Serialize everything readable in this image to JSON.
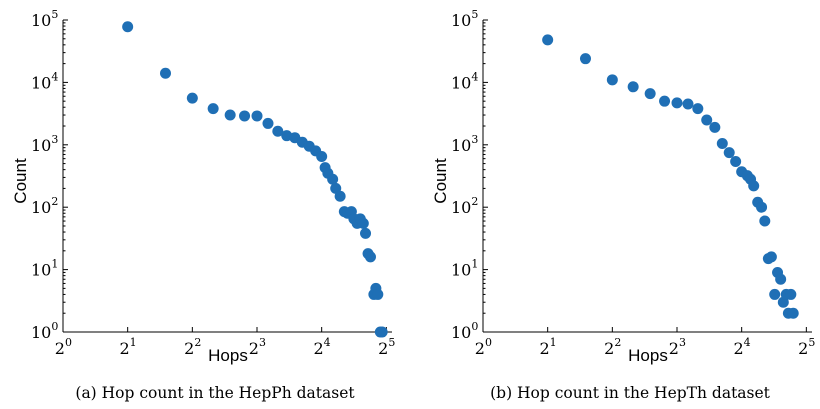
{
  "chart_data": [
    {
      "type": "scatter",
      "title": "",
      "xlabel": "Hops",
      "ylabel": "Count",
      "caption": "(a) Hop count in the HepPh dataset",
      "x_scale": "log2",
      "y_scale": "log10",
      "xlim": [
        1,
        34
      ],
      "ylim": [
        1,
        100000
      ],
      "x_ticks": [
        {
          "base": "2",
          "exp": "0"
        },
        {
          "base": "2",
          "exp": "1"
        },
        {
          "base": "2",
          "exp": "2"
        },
        {
          "base": "2",
          "exp": "3"
        },
        {
          "base": "2",
          "exp": "4"
        },
        {
          "base": "2",
          "exp": "5"
        }
      ],
      "y_ticks": [
        {
          "base": "10",
          "exp": "0"
        },
        {
          "base": "10",
          "exp": "1"
        },
        {
          "base": "10",
          "exp": "2"
        },
        {
          "base": "10",
          "exp": "3"
        },
        {
          "base": "10",
          "exp": "4"
        },
        {
          "base": "10",
          "exp": "5"
        }
      ],
      "marker_color": "#1f6fb5",
      "x": [
        2,
        3,
        4,
        5,
        6,
        7,
        8,
        9,
        10,
        11,
        12,
        13,
        14,
        15,
        16,
        16.6,
        17.1,
        18,
        18.6,
        19.5,
        20.4,
        21.1,
        22,
        22.6,
        23.4,
        24.2,
        25,
        25.6,
        26.3,
        27,
        28,
        28.6,
        29.2,
        30,
        30.6
      ],
      "y": [
        78000,
        14000,
        5600,
        3800,
        3000,
        2900,
        2900,
        2200,
        1650,
        1400,
        1300,
        1100,
        950,
        800,
        650,
        430,
        350,
        280,
        200,
        150,
        85,
        80,
        85,
        65,
        55,
        65,
        55,
        38,
        18,
        16,
        4,
        5,
        4,
        1,
        1
      ]
    },
    {
      "type": "scatter",
      "title": "",
      "xlabel": "Hops",
      "ylabel": "Count",
      "caption": "(b) Hop count in the HepTh dataset",
      "x_scale": "log2",
      "y_scale": "log10",
      "xlim": [
        1,
        34
      ],
      "ylim": [
        1,
        100000
      ],
      "x_ticks": [
        {
          "base": "2",
          "exp": "0"
        },
        {
          "base": "2",
          "exp": "1"
        },
        {
          "base": "2",
          "exp": "2"
        },
        {
          "base": "2",
          "exp": "3"
        },
        {
          "base": "2",
          "exp": "4"
        },
        {
          "base": "2",
          "exp": "5"
        }
      ],
      "y_ticks": [
        {
          "base": "10",
          "exp": "0"
        },
        {
          "base": "10",
          "exp": "1"
        },
        {
          "base": "10",
          "exp": "2"
        },
        {
          "base": "10",
          "exp": "3"
        },
        {
          "base": "10",
          "exp": "4"
        },
        {
          "base": "10",
          "exp": "5"
        }
      ],
      "marker_color": "#1f6fb5",
      "x": [
        2,
        3,
        4,
        5,
        6,
        7,
        8,
        9,
        10,
        11,
        12,
        13,
        14,
        15,
        16,
        17,
        17.6,
        18.2,
        19,
        19.8,
        20.5,
        21.3,
        22,
        22.8,
        23.5,
        24.3,
        25,
        25.8,
        26.4,
        27.1,
        27.8
      ],
      "y": [
        48000,
        24000,
        11000,
        8500,
        6600,
        5000,
        4700,
        4500,
        3800,
        2500,
        1900,
        1050,
        750,
        540,
        370,
        320,
        280,
        220,
        120,
        100,
        60,
        15,
        16,
        4,
        9,
        7,
        3,
        4,
        2,
        4,
        2
      ]
    }
  ]
}
